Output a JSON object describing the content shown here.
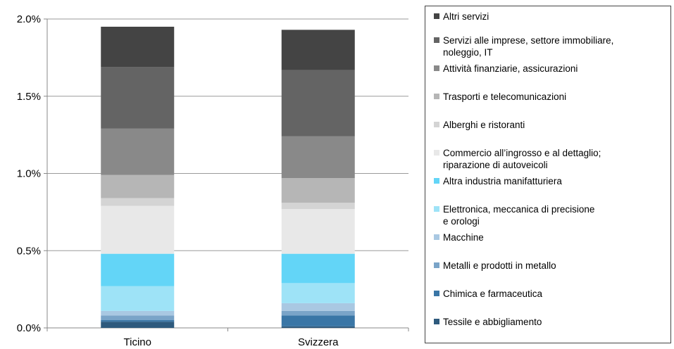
{
  "chart_data": {
    "type": "bar",
    "stacked": true,
    "categories": [
      "Ticino",
      "Svizzera"
    ],
    "ylim": [
      0,
      2.0
    ],
    "yticks": [
      {
        "value": 0.0,
        "label": "0.0%"
      },
      {
        "value": 0.5,
        "label": "0.5%"
      },
      {
        "value": 1.0,
        "label": "1.0%"
      },
      {
        "value": 1.5,
        "label": "1.5%"
      },
      {
        "value": 2.0,
        "label": "2.0%"
      }
    ],
    "grid": true,
    "legend_position": "right",
    "series": [
      {
        "name": "Tessile e abbigliamento",
        "color": "#2e5a7d",
        "values": [
          0.04,
          0.01
        ]
      },
      {
        "name": "Chimica e farmaceutica",
        "color": "#3a76a6",
        "values": [
          0.01,
          0.07
        ]
      },
      {
        "name": "Metalli e prodotti in metallo",
        "color": "#7aa4c8",
        "values": [
          0.03,
          0.03
        ]
      },
      {
        "name": "Macchine",
        "color": "#a9c8e2",
        "values": [
          0.03,
          0.05
        ]
      },
      {
        "name": "Elettronica, meccanica di precisione e orologi",
        "color": "#9ee3f7",
        "values": [
          0.16,
          0.13
        ]
      },
      {
        "name": "Altra industria manifatturiera",
        "color": "#63d5f7",
        "values": [
          0.21,
          0.19
        ]
      },
      {
        "name": "Commercio all’ingrosso e al dettaglio; riparazione di autoveicoli",
        "color": "#e8e8e8",
        "values": [
          0.31,
          0.29
        ]
      },
      {
        "name": "Alberghi e ristoranti",
        "color": "#d4d4d4",
        "values": [
          0.05,
          0.04
        ]
      },
      {
        "name": "Trasporti e telecomunicazioni",
        "color": "#b6b6b6",
        "values": [
          0.15,
          0.16
        ]
      },
      {
        "name": "Attività finanziarie, assicurazioni",
        "color": "#898989",
        "values": [
          0.3,
          0.27
        ]
      },
      {
        "name": "Servizi alle imprese, settore immobiliare, noleggio, IT",
        "color": "#646464",
        "values": [
          0.4,
          0.43
        ]
      },
      {
        "name": "Altri servizi",
        "color": "#444444",
        "values": [
          0.26,
          0.26
        ]
      }
    ]
  },
  "legend": {
    "items": [
      {
        "lines": [
          "Altri servizi"
        ],
        "color": "#444444"
      },
      {
        "lines": [
          "Servizi alle imprese, settore immobiliare,",
          "noleggio, IT"
        ],
        "color": "#646464"
      },
      {
        "lines": [
          "Attività finanziarie, assicurazioni"
        ],
        "color": "#898989"
      },
      {
        "lines": [
          "Trasporti e telecomunicazioni"
        ],
        "color": "#b6b6b6"
      },
      {
        "lines": [
          "Alberghi e ristoranti"
        ],
        "color": "#d4d4d4"
      },
      {
        "lines": [
          "Commercio all’ingrosso e al dettaglio;",
          "riparazione di autoveicoli"
        ],
        "color": "#e8e8e8"
      },
      {
        "lines": [
          "Altra industria manifatturiera"
        ],
        "color": "#63d5f7"
      },
      {
        "lines": [
          "Elettronica, meccanica di precisione",
          "e orologi"
        ],
        "color": "#9ee3f7"
      },
      {
        "lines": [
          "Macchine"
        ],
        "color": "#a9c8e2"
      },
      {
        "lines": [
          "Metalli e prodotti in metallo"
        ],
        "color": "#7aa4c8"
      },
      {
        "lines": [
          "Chimica e farmaceutica"
        ],
        "color": "#3a76a6"
      },
      {
        "lines": [
          "Tessile e abbigliamento"
        ],
        "color": "#2e5a7d"
      }
    ]
  }
}
